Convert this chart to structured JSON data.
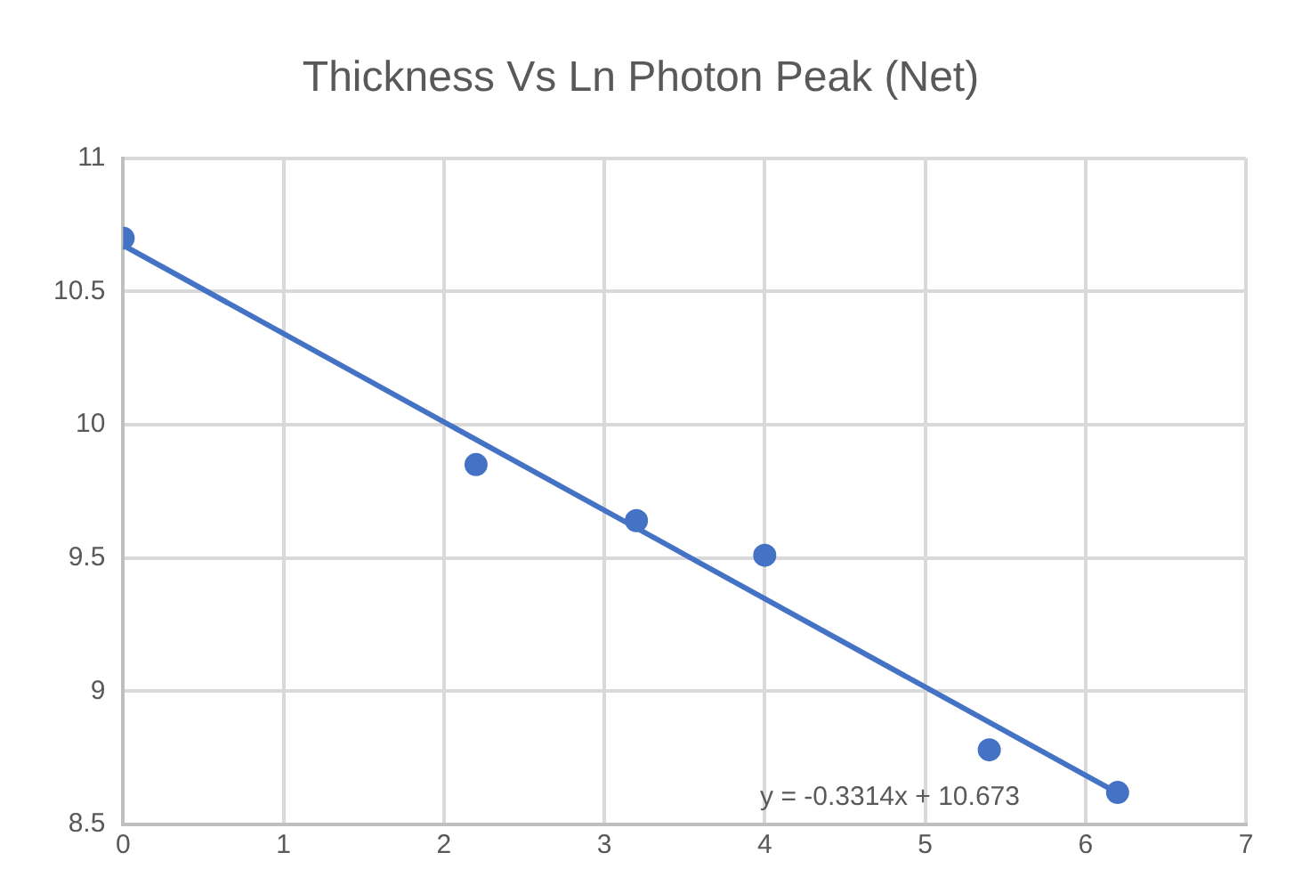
{
  "chart_data": {
    "type": "scatter",
    "title": "Thickness Vs Ln Photon Peak (Net)",
    "x": [
      0,
      2.2,
      3.2,
      4.0,
      5.4,
      6.2
    ],
    "series": [
      {
        "color": "#4472c4",
        "marker": "circle",
        "values": [
          10.7,
          9.85,
          9.64,
          9.51,
          8.78,
          8.62
        ]
      },
      {
        "type": "line",
        "color": "#4472c4",
        "marker": "none",
        "x": [
          0,
          6.2
        ],
        "values": [
          10.673,
          8.618
        ]
      }
    ],
    "xlim": [
      0,
      7
    ],
    "xticks": [
      0,
      1,
      2,
      3,
      4,
      5,
      6,
      7
    ],
    "ylim": [
      8.5,
      11
    ],
    "yticks": [
      8.5,
      9,
      9.5,
      10,
      10.5,
      11
    ],
    "grid": true,
    "legend": false,
    "annotations": [
      "y = -0.3314x + 10.673"
    ]
  }
}
